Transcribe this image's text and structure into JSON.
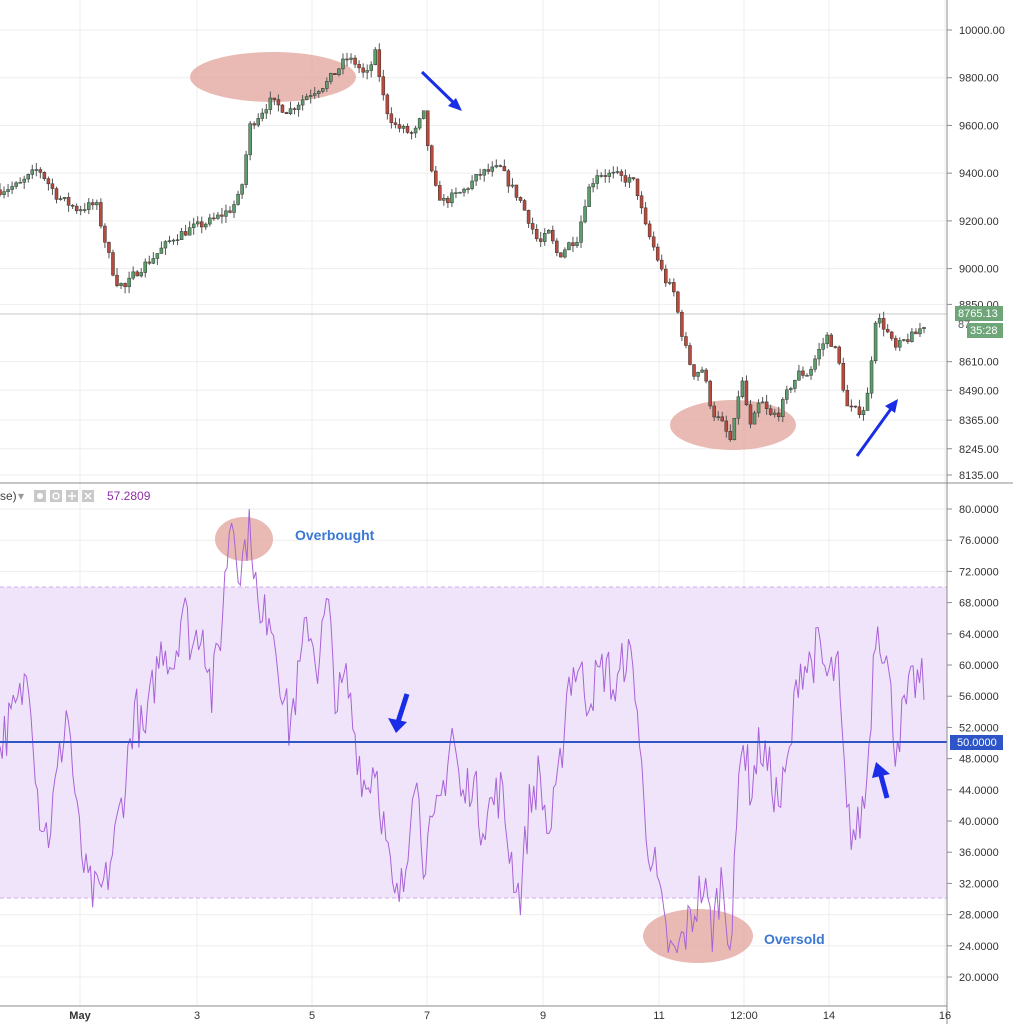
{
  "chart_data": [
    {
      "type": "candlestick",
      "title": "",
      "price_axis": {
        "ticks": [
          "10000.00",
          "9800.00",
          "9600.00",
          "9400.00",
          "9200.00",
          "9000.00",
          "8850.00",
          "8610.00",
          "8490.00",
          "8365.00",
          "8245.00",
          "8135.00"
        ],
        "tick_values": [
          10000,
          9800,
          9600,
          9400,
          9200,
          9000,
          8850,
          8610,
          8490,
          8365,
          8245,
          8135
        ],
        "current_price_label": "8765.13",
        "current_price_value": 8765.13,
        "countdown_label": "35:28",
        "partial_label": "87"
      },
      "x_axis": {
        "ticks": [
          "May",
          "3",
          "5",
          "7",
          "9",
          "11",
          "12:00",
          "14",
          "16"
        ]
      },
      "price_path": [
        [
          0,
          9330
        ],
        [
          2,
          9350
        ],
        [
          4,
          9420
        ],
        [
          6,
          9300
        ],
        [
          8,
          9250
        ],
        [
          10,
          9270
        ],
        [
          11,
          9100
        ],
        [
          12,
          8950
        ],
        [
          13,
          8920
        ],
        [
          14,
          8980
        ],
        [
          16,
          9050
        ],
        [
          18,
          9130
        ],
        [
          20,
          9170
        ],
        [
          22,
          9200
        ],
        [
          24,
          9250
        ],
        [
          25,
          9310
        ],
        [
          26,
          9600
        ],
        [
          27,
          9650
        ],
        [
          28,
          9700
        ],
        [
          30,
          9660
        ],
        [
          32,
          9730
        ],
        [
          34,
          9780
        ],
        [
          36,
          9880
        ],
        [
          37,
          9860
        ],
        [
          38,
          9800
        ],
        [
          39,
          9900
        ],
        [
          40,
          9680
        ],
        [
          41,
          9600
        ],
        [
          42,
          9580
        ],
        [
          43,
          9560
        ],
        [
          44,
          9650
        ],
        [
          45,
          9350
        ],
        [
          46,
          9280
        ],
        [
          48,
          9320
        ],
        [
          50,
          9400
        ],
        [
          52,
          9420
        ],
        [
          53,
          9350
        ],
        [
          54,
          9290
        ],
        [
          55,
          9200
        ],
        [
          56,
          9100
        ],
        [
          57,
          9150
        ],
        [
          58,
          9050
        ],
        [
          59,
          9100
        ],
        [
          60,
          9130
        ],
        [
          61,
          9320
        ],
        [
          62,
          9400
        ],
        [
          64,
          9390
        ],
        [
          66,
          9360
        ],
        [
          67,
          9180
        ],
        [
          68,
          9080
        ],
        [
          69,
          8960
        ],
        [
          70,
          8900
        ],
        [
          71,
          8700
        ],
        [
          72,
          8560
        ],
        [
          73,
          8580
        ],
        [
          74,
          8400
        ],
        [
          75,
          8350
        ],
        [
          76,
          8270
        ],
        [
          77,
          8550
        ],
        [
          78,
          8330
        ],
        [
          79,
          8450
        ],
        [
          80,
          8380
        ],
        [
          81,
          8400
        ],
        [
          82,
          8500
        ],
        [
          83,
          8560
        ],
        [
          84,
          8560
        ],
        [
          85,
          8650
        ],
        [
          86,
          8720
        ],
        [
          87,
          8640
        ],
        [
          88,
          8420
        ],
        [
          89,
          8400
        ],
        [
          90,
          8420
        ],
        [
          91,
          8800
        ],
        [
          92,
          8750
        ],
        [
          93,
          8660
        ],
        [
          94,
          8700
        ],
        [
          95,
          8720
        ],
        [
          96,
          8765.13
        ]
      ],
      "rsi": {
        "label": "se)",
        "value_label": "57.2809",
        "ticks": [
          "80.0000",
          "76.0000",
          "72.0000",
          "68.0000",
          "64.0000",
          "60.0000",
          "56.0000",
          "52.0000",
          "48.0000",
          "44.0000",
          "40.0000",
          "36.0000",
          "32.0000",
          "28.0000",
          "24.0000",
          "20.0000"
        ],
        "tick_values": [
          80,
          76,
          72,
          68,
          64,
          60,
          56,
          52,
          48,
          44,
          40,
          36,
          32,
          28,
          24,
          20
        ],
        "midline_label": "50.0000",
        "midline": 50,
        "band": [
          30,
          70
        ],
        "path": [
          [
            0,
            50
          ],
          [
            2,
            55
          ],
          [
            3,
            60
          ],
          [
            4,
            42
          ],
          [
            5,
            38
          ],
          [
            6,
            46
          ],
          [
            7,
            55
          ],
          [
            8,
            40
          ],
          [
            9,
            32
          ],
          [
            10,
            30
          ],
          [
            11,
            32
          ],
          [
            12,
            38
          ],
          [
            13,
            45
          ],
          [
            14,
            55
          ],
          [
            15,
            50
          ],
          [
            16,
            58
          ],
          [
            17,
            63
          ],
          [
            18,
            60
          ],
          [
            19,
            68
          ],
          [
            20,
            62
          ],
          [
            21,
            66
          ],
          [
            22,
            56
          ],
          [
            23,
            65
          ],
          [
            24,
            80
          ],
          [
            25,
            72
          ],
          [
            26,
            79
          ],
          [
            27,
            64
          ],
          [
            28,
            68
          ],
          [
            29,
            60
          ],
          [
            30,
            52
          ],
          [
            31,
            58
          ],
          [
            32,
            66
          ],
          [
            33,
            60
          ],
          [
            34,
            68
          ],
          [
            35,
            55
          ],
          [
            36,
            58
          ],
          [
            37,
            50
          ],
          [
            38,
            44
          ],
          [
            39,
            48
          ],
          [
            40,
            38
          ],
          [
            41,
            29
          ],
          [
            42,
            32
          ],
          [
            43,
            48
          ],
          [
            44,
            36
          ],
          [
            45,
            38
          ],
          [
            46,
            44
          ],
          [
            47,
            52
          ],
          [
            48,
            42
          ],
          [
            49,
            46
          ],
          [
            50,
            40
          ],
          [
            52,
            44
          ],
          [
            53,
            36
          ],
          [
            54,
            30
          ],
          [
            55,
            42
          ],
          [
            56,
            46
          ],
          [
            57,
            38
          ],
          [
            58,
            44
          ],
          [
            59,
            58
          ],
          [
            60,
            60
          ],
          [
            61,
            56
          ],
          [
            62,
            58
          ],
          [
            63,
            60
          ],
          [
            64,
            56
          ],
          [
            65,
            62
          ],
          [
            66,
            58
          ],
          [
            67,
            40
          ],
          [
            68,
            34
          ],
          [
            69,
            26
          ],
          [
            70,
            22
          ],
          [
            71,
            25
          ],
          [
            72,
            28
          ],
          [
            73,
            32
          ],
          [
            74,
            26
          ],
          [
            75,
            33
          ],
          [
            76,
            24
          ],
          [
            77,
            52
          ],
          [
            78,
            44
          ],
          [
            79,
            50
          ],
          [
            80,
            46
          ],
          [
            81,
            42
          ],
          [
            82,
            48
          ],
          [
            83,
            60
          ],
          [
            84,
            60
          ],
          [
            85,
            62
          ],
          [
            86,
            58
          ],
          [
            87,
            60
          ],
          [
            88,
            40
          ],
          [
            89,
            38
          ],
          [
            90,
            44
          ],
          [
            91,
            66
          ],
          [
            92,
            62
          ],
          [
            93,
            50
          ],
          [
            94,
            54
          ],
          [
            95,
            58
          ],
          [
            96,
            57.2809
          ]
        ]
      },
      "annotations": {
        "overbought_label": "Overbought",
        "oversold_label": "Oversold"
      },
      "colors": {
        "up_candle": "#5c9e6b",
        "down_candle": "#b94a3c",
        "rsi_line": "#a863d8",
        "rsi_band_fill": "#f0e4fb",
        "midline": "#2d55c7",
        "arrow": "#1a2de6",
        "highlight": "#e2a39b",
        "label_blue": "#3a78d4",
        "price_tag": "#6ea67a"
      }
    }
  ]
}
